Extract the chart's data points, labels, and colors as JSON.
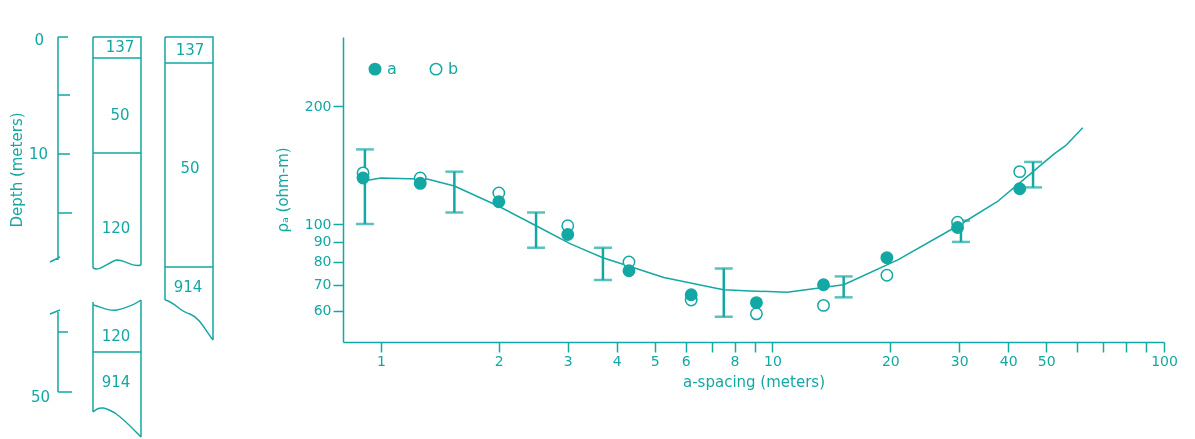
{
  "chart_data": [
    {
      "type": "other",
      "ylabel": "Depth (meters)",
      "annotations": [
        "0",
        "10",
        "50",
        "137",
        "50",
        "120",
        "120",
        "914",
        "137",
        "50",
        "914"
      ]
    },
    {
      "type": "scatter",
      "xlabel": "a-spacing (meters)",
      "ylabel": "ρₐ  (ohm-m)",
      "log": "xy",
      "xlim": [
        0.8,
        100
      ],
      "ylim": [
        50,
        300
      ],
      "xticks": [
        1,
        2,
        3,
        4,
        5,
        6,
        {
          "value": 7,
          "label": null
        },
        8,
        {
          "value": 9,
          "label": null
        },
        10,
        20,
        30,
        40,
        50,
        {
          "value": 60,
          "label": null
        },
        {
          "value": 70,
          "label": null
        },
        {
          "value": 80,
          "label": null
        },
        {
          "value": 90,
          "label": null
        },
        100
      ],
      "yticks": [
        60,
        70,
        80,
        90,
        100,
        200
      ],
      "legend": "top left",
      "series": [
        {
          "type": "line",
          "marker": "none",
          "line_style": "solid",
          "color": "#13a8a4",
          "x": [
            0.91,
            1.0,
            1.32,
            1.54,
            1.98,
            2.49,
            3.05,
            3.69,
            5.28,
            7.23,
            7.51,
            8.77,
            10.9,
            15.2,
            20.9,
            30.3,
            37.5,
            46.3,
            52.4,
            56.3,
            62
          ],
          "values": [
            129,
            131,
            130,
            125,
            111.5,
            99,
            89,
            82,
            73,
            68.5,
            68,
            67.5,
            67,
            70,
            81,
            100,
            114,
            136,
            151,
            159,
            176
          ],
          "errors": [
            [
              100,
              155
            ],
            null,
            null,
            [
              107,
              136
            ],
            null,
            [
              87,
              107
            ],
            null,
            [
              72,
              87
            ],
            null,
            null,
            [
              58,
              77
            ],
            null,
            null,
            [
              65,
              73.5
            ],
            null,
            [
              90,
              102
            ],
            null,
            [
              124,
              144
            ],
            null,
            null,
            null
          ]
        },
        {
          "type": "scatter",
          "name": "a",
          "marker": "circle",
          "color": "#13a8a4",
          "x": [
            0.9,
            1.26,
            2.0,
            3.0,
            4.3,
            6.2,
            9.1,
            13.5,
            19.6,
            29.7,
            42.8
          ],
          "values": [
            131,
            127,
            114,
            94,
            76,
            66,
            63,
            70,
            82,
            98,
            123
          ]
        },
        {
          "type": "scatter",
          "name": "b",
          "marker": "circle",
          "color": "#13a8a4",
          "x": [
            0.9,
            1.26,
            2.0,
            3.0,
            4.3,
            6.2,
            9.1,
            13.5,
            19.6,
            29.7,
            42.8
          ],
          "values": [
            135,
            131,
            120,
            99,
            80,
            64,
            59,
            62,
            74,
            101,
            136
          ]
        }
      ]
    }
  ]
}
